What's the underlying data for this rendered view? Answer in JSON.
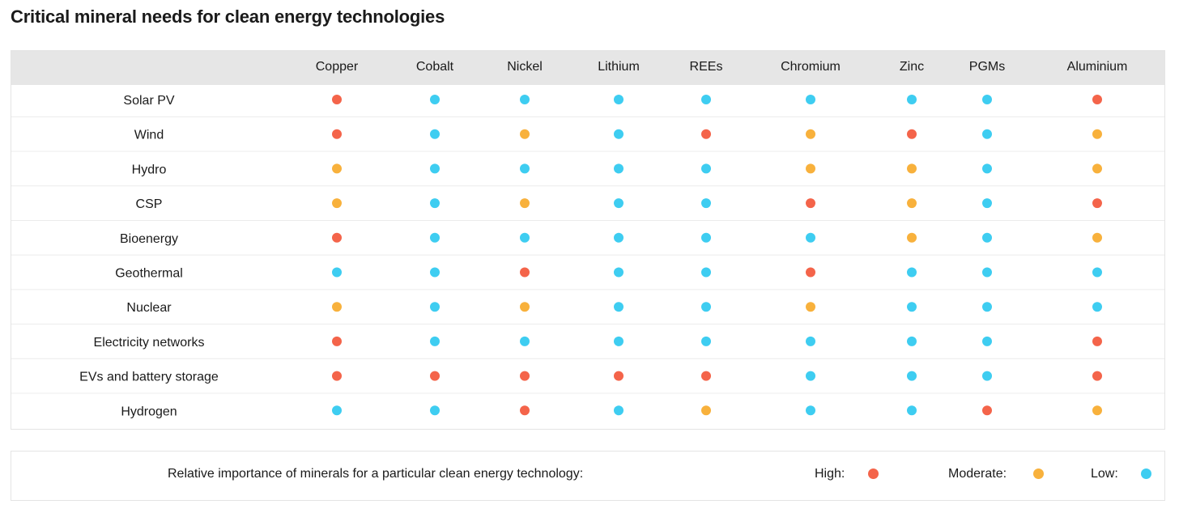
{
  "title": "Critical mineral needs for clean energy technologies",
  "chart_data": {
    "type": "table",
    "columns": [
      "Copper",
      "Cobalt",
      "Nickel",
      "Lithium",
      "REEs",
      "Chromium",
      "Zinc",
      "PGMs",
      "Aluminium"
    ],
    "rows": [
      {
        "label": "Solar PV",
        "values": [
          "High",
          "Low",
          "Low",
          "Low",
          "Low",
          "Low",
          "Low",
          "Low",
          "High"
        ]
      },
      {
        "label": "Wind",
        "values": [
          "High",
          "Low",
          "Moderate",
          "Low",
          "High",
          "Moderate",
          "High",
          "Low",
          "Moderate"
        ]
      },
      {
        "label": "Hydro",
        "values": [
          "Moderate",
          "Low",
          "Low",
          "Low",
          "Low",
          "Moderate",
          "Moderate",
          "Low",
          "Moderate"
        ]
      },
      {
        "label": "CSP",
        "values": [
          "Moderate",
          "Low",
          "Moderate",
          "Low",
          "Low",
          "High",
          "Moderate",
          "Low",
          "High"
        ]
      },
      {
        "label": "Bioenergy",
        "values": [
          "High",
          "Low",
          "Low",
          "Low",
          "Low",
          "Low",
          "Moderate",
          "Low",
          "Moderate"
        ]
      },
      {
        "label": "Geothermal",
        "values": [
          "Low",
          "Low",
          "High",
          "Low",
          "Low",
          "High",
          "Low",
          "Low",
          "Low"
        ]
      },
      {
        "label": "Nuclear",
        "values": [
          "Moderate",
          "Low",
          "Moderate",
          "Low",
          "Low",
          "Moderate",
          "Low",
          "Low",
          "Low"
        ]
      },
      {
        "label": "Electricity networks",
        "values": [
          "High",
          "Low",
          "Low",
          "Low",
          "Low",
          "Low",
          "Low",
          "Low",
          "High"
        ]
      },
      {
        "label": "EVs and battery storage",
        "values": [
          "High",
          "High",
          "High",
          "High",
          "High",
          "Low",
          "Low",
          "Low",
          "High"
        ]
      },
      {
        "label": "Hydrogen",
        "values": [
          "Low",
          "Low",
          "High",
          "Low",
          "Moderate",
          "Low",
          "Low",
          "High",
          "Moderate"
        ]
      }
    ],
    "level_colors": {
      "High": "#f4644a",
      "Moderate": "#f8b13c",
      "Low": "#3ecdf1"
    }
  },
  "legend": {
    "caption": "Relative importance of minerals for a particular clean energy technology:",
    "items": [
      {
        "label": "High:",
        "color": "#f4644a"
      },
      {
        "label": "Moderate:",
        "color": "#f8b13c"
      },
      {
        "label": "Low:",
        "color": "#3ecdf1"
      }
    ]
  }
}
